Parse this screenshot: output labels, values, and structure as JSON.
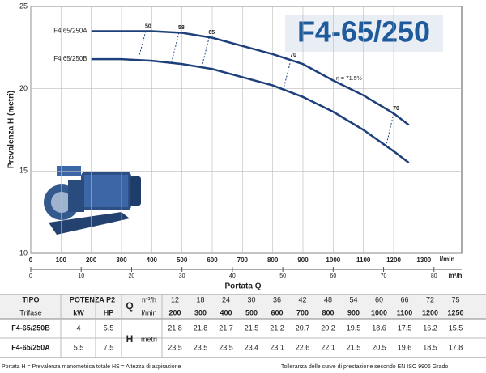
{
  "chart_data": {
    "type": "line",
    "title": "F4-65/250",
    "y_label": "Prevalenza H (metri)",
    "x_label": "Portata Q",
    "x_unit": "l/min",
    "x2_unit": "m³/h",
    "xlim": [
      0,
      1425
    ],
    "xticks": [
      0,
      100,
      200,
      300,
      400,
      500,
      600,
      700,
      800,
      900,
      1000,
      1100,
      1200,
      1300
    ],
    "x2lim": [
      0,
      85.5
    ],
    "x2ticks": [
      0,
      10,
      20,
      30,
      40,
      50,
      60,
      70,
      80
    ],
    "ylim": [
      10,
      25
    ],
    "yticks": [
      10,
      15,
      20,
      25
    ],
    "grid": true,
    "x": [
      200,
      300,
      400,
      500,
      600,
      700,
      800,
      900,
      1000,
      1100,
      1200,
      1250
    ],
    "series": [
      {
        "name": "F4 65/250A",
        "color": "#1d3f7a",
        "values": [
          23.5,
          23.5,
          23.5,
          23.4,
          23.1,
          22.6,
          22.1,
          21.5,
          20.5,
          19.6,
          18.5,
          17.8
        ]
      },
      {
        "name": "F4 65/250B",
        "color": "#1d3f7a",
        "values": [
          21.8,
          21.8,
          21.7,
          21.5,
          21.2,
          20.7,
          20.2,
          19.5,
          18.6,
          17.5,
          16.2,
          15.5
        ]
      }
    ],
    "efficiency": {
      "x": [
        380,
        490,
        590,
        860,
        1200
      ],
      "values": [
        50,
        58,
        65,
        70,
        70
      ],
      "label": "η = 71.5%"
    }
  },
  "table": {
    "headers": {
      "type": "TIPO",
      "phase": "Trifase",
      "power": "POTENZA P2",
      "kw": "kW",
      "hp": "HP",
      "q": "Q",
      "q_m3h": "m³/h",
      "q_lmin": "l/min",
      "h": "H",
      "h_unit": "metri"
    },
    "m3h": [
      12,
      18,
      24,
      30,
      36,
      42,
      48,
      54,
      60,
      66,
      72,
      75
    ],
    "rows": [
      {
        "name": "F4-65/250B",
        "kw": 4,
        "hp": 5.5
      },
      {
        "name": "F4-65/250A",
        "kw": 5.5,
        "hp": 7.5
      }
    ],
    "footer_left": "Portata  H = Prevalenza manometrica totale   HS = Altezza di aspirazione",
    "footer_right": "Tolleranza delle curve di prestazione secondo EN ISO 9906 Grado"
  }
}
